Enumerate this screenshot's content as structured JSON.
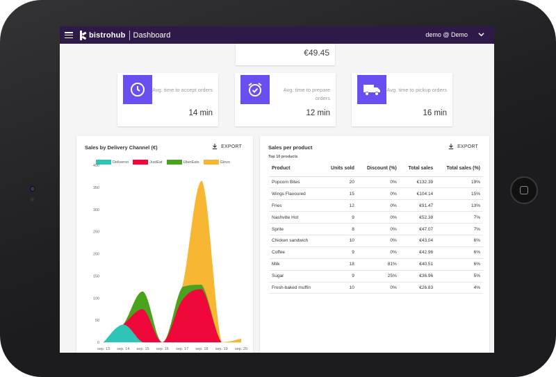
{
  "header": {
    "brand": "bistrohub",
    "page_title": "Dashboard",
    "user": "demo @ Demo"
  },
  "summary": {
    "amount": "€49.45"
  },
  "kpis": [
    {
      "icon": "clock-icon",
      "label": "Avg. time to accept orders",
      "value": "14 min"
    },
    {
      "icon": "alarm-clock-icon",
      "label": "Avg. time to prepare orders",
      "value": "12 min"
    },
    {
      "icon": "truck-icon",
      "label": "Avg. time to pickup orders",
      "value": "16 min"
    }
  ],
  "sales_channel": {
    "title": "Sales by Delivery Channel (€)",
    "export_label": "EXPORT"
  },
  "chart_data": {
    "type": "area",
    "title": "Sales by Delivery Channel (€)",
    "categories": [
      "sep. 13",
      "sep. 14",
      "sep. 15",
      "sep. 16",
      "sep. 17",
      "sep. 18",
      "sep. 19",
      "sep. 20"
    ],
    "yticks": [
      0,
      50,
      100,
      150,
      200,
      250,
      300,
      350,
      400
    ],
    "ylim": [
      0,
      400
    ],
    "stacked": true,
    "legend_position": "top",
    "series": [
      {
        "name": "Deliveroo",
        "color": "#2ec4b6",
        "values": [
          0,
          40,
          0,
          0,
          0,
          0,
          0,
          0
        ]
      },
      {
        "name": "JustEat",
        "color": "#f0083a",
        "values": [
          0,
          0,
          75,
          0,
          95,
          120,
          0,
          0
        ]
      },
      {
        "name": "UberEats",
        "color": "#4aa31c",
        "values": [
          0,
          0,
          40,
          0,
          30,
          10,
          0,
          0
        ]
      },
      {
        "name": "Glovo",
        "color": "#f7b733",
        "values": [
          0,
          0,
          0,
          0,
          0,
          235,
          0,
          8
        ]
      }
    ]
  },
  "products": {
    "title": "Sales per product",
    "subtitle": "Top 10 products",
    "export_label": "EXPORT",
    "columns": [
      "Product",
      "Units sold",
      "Discount (%)",
      "Total sales",
      "Total sales (%)"
    ],
    "rows": [
      [
        "Popcorn Bites",
        "20",
        "0%",
        "€132.39",
        "19%"
      ],
      [
        "Wings Flavoured",
        "15",
        "0%",
        "€104.14",
        "15%"
      ],
      [
        "Fries",
        "12",
        "0%",
        "€91.47",
        "13%"
      ],
      [
        "Nashville Hot",
        "9",
        "0%",
        "€52.38",
        "7%"
      ],
      [
        "Sprite",
        "8",
        "0%",
        "€47.07",
        "7%"
      ],
      [
        "Chicken sandwich",
        "10",
        "0%",
        "€43.04",
        "6%"
      ],
      [
        "Coffee",
        "9",
        "0%",
        "€42.96",
        "6%"
      ],
      [
        "Milk",
        "18",
        "81%",
        "€40.51",
        "6%"
      ],
      [
        "Sugar",
        "9",
        "25%",
        "€36.96",
        "5%"
      ],
      [
        "Fresh-baked muffin",
        "10",
        "0%",
        "€26.83",
        "4%"
      ]
    ]
  }
}
